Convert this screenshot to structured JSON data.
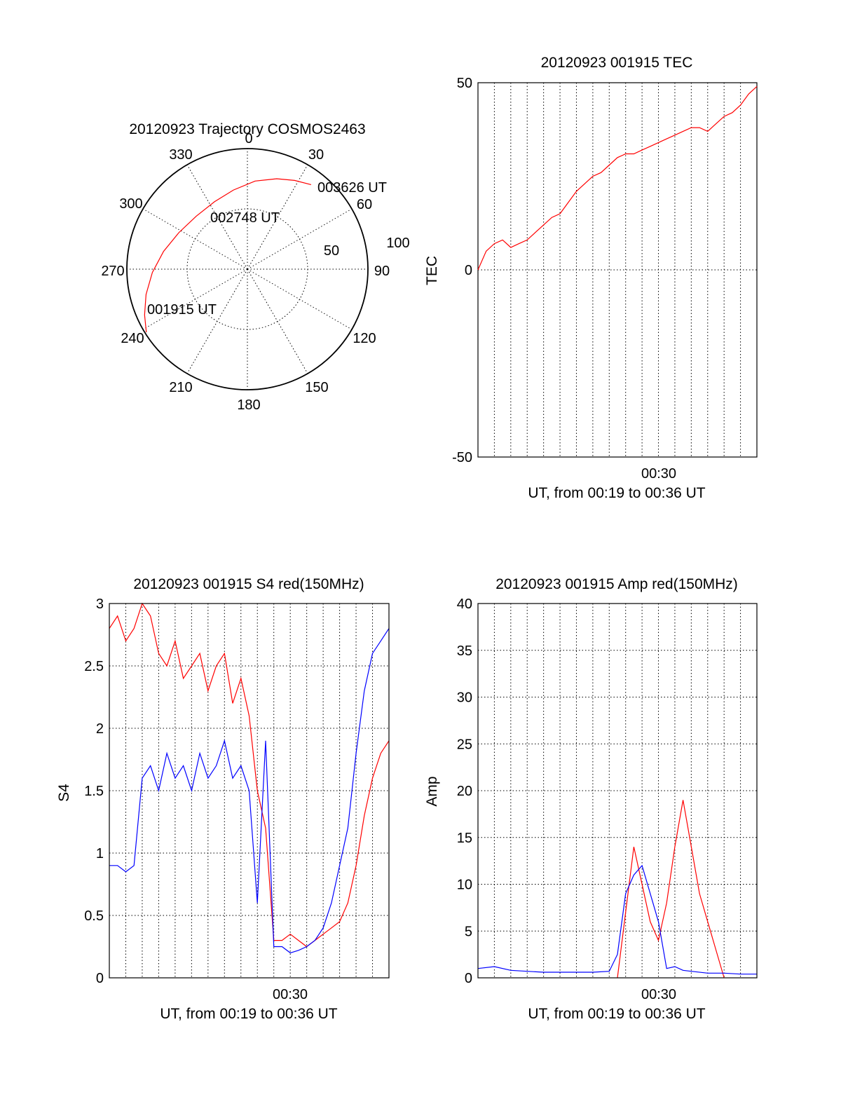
{
  "chart_data": [
    {
      "type": "polar",
      "title": "20120923 Trajectory COSMOS2463",
      "azimuth_labels": [
        "0",
        "30",
        "60",
        "90",
        "120",
        "150",
        "180",
        "210",
        "240",
        "270",
        "300",
        "330"
      ],
      "radius_labels": [
        "50",
        "100"
      ],
      "annotations": [
        "003626 UT",
        "002748 UT",
        "001915 UT"
      ],
      "colors": {
        "trajectory": "#ff0000"
      },
      "trajectory": [
        {
          "az": 238,
          "zen": 89
        },
        {
          "az": 246,
          "zen": 84
        },
        {
          "az": 256,
          "zen": 78
        },
        {
          "az": 268,
          "zen": 71
        },
        {
          "az": 282,
          "zen": 64
        },
        {
          "az": 298,
          "zen": 58
        },
        {
          "az": 316,
          "zen": 55
        },
        {
          "az": 334,
          "zen": 56
        },
        {
          "az": 350,
          "zen": 60
        },
        {
          "az": 5,
          "zen": 66
        },
        {
          "az": 18,
          "zen": 71
        },
        {
          "az": 28,
          "zen": 75
        },
        {
          "az": 37,
          "zen": 79
        }
      ]
    },
    {
      "type": "line",
      "title": "20120923 001915 TEC",
      "ylabel": "TEC",
      "xlabel": "UT, from 00:19 to 00:36 UT",
      "xtick_labels": [
        "00:30"
      ],
      "ytick_labels": [
        "50",
        "0",
        "-50"
      ],
      "ylim": [
        -50,
        50
      ],
      "colors": {
        "series": "#ff0000"
      },
      "series": [
        {
          "x_minutes": [
            0,
            0.5,
            1,
            1.5,
            2,
            2.5,
            3,
            3.5,
            4,
            4.5,
            5,
            5.5,
            6,
            6.5,
            7,
            7.5,
            8,
            8.5,
            9,
            9.5,
            10,
            10.5,
            11,
            11.5,
            12,
            12.5,
            13,
            13.5,
            14,
            14.5,
            15,
            15.5,
            16,
            16.5,
            17
          ],
          "values": [
            0,
            5,
            7,
            8,
            6,
            7,
            8,
            10,
            12,
            14,
            15,
            18,
            21,
            23,
            25,
            26,
            28,
            30,
            31,
            31,
            32,
            33,
            34,
            35,
            36,
            37,
            38,
            38,
            37,
            39,
            41,
            42,
            44,
            47,
            49
          ]
        }
      ]
    },
    {
      "type": "line",
      "title": "20120923 001915 S4 red(150MHz)",
      "ylabel": "S4",
      "xlabel": "UT, from 00:19 to 00:36 UT",
      "xtick_labels": [
        "00:30"
      ],
      "ytick_labels": [
        "0",
        "0.5",
        "1",
        "1.5",
        "2",
        "2.5",
        "3"
      ],
      "ylim": [
        0,
        3
      ],
      "colors": {
        "red": "#ff0000",
        "blue": "#0000ff"
      },
      "series": [
        {
          "color": "red",
          "x_minutes": [
            0,
            0.5,
            1,
            1.5,
            2,
            2.5,
            3,
            3.5,
            4,
            4.5,
            5,
            5.5,
            6,
            6.5,
            7,
            7.5,
            8,
            8.5,
            9,
            9.5,
            10,
            10.5,
            11,
            11.5,
            12,
            12.5,
            13,
            13.5,
            14,
            14.5,
            15,
            15.5,
            16,
            16.5,
            17
          ],
          "values": [
            2.8,
            2.9,
            2.7,
            2.8,
            3.0,
            2.9,
            2.6,
            2.5,
            2.7,
            2.4,
            2.5,
            2.6,
            2.3,
            2.5,
            2.6,
            2.2,
            2.4,
            2.1,
            1.5,
            1.2,
            0.3,
            0.3,
            0.35,
            0.3,
            0.25,
            0.3,
            0.35,
            0.4,
            0.45,
            0.6,
            0.9,
            1.3,
            1.6,
            1.8,
            1.9
          ]
        },
        {
          "color": "blue",
          "x_minutes": [
            0,
            0.5,
            1,
            1.5,
            2,
            2.5,
            3,
            3.5,
            4,
            4.5,
            5,
            5.5,
            6,
            6.5,
            7,
            7.5,
            8,
            8.5,
            9,
            9.5,
            10,
            10.5,
            11,
            11.5,
            12,
            12.5,
            13,
            13.5,
            14,
            14.5,
            15,
            15.5,
            16,
            16.5,
            17
          ],
          "values": [
            0.9,
            0.9,
            0.85,
            0.9,
            1.6,
            1.7,
            1.5,
            1.8,
            1.6,
            1.7,
            1.5,
            1.8,
            1.6,
            1.7,
            1.9,
            1.6,
            1.7,
            1.5,
            0.6,
            1.9,
            0.25,
            0.25,
            0.2,
            0.22,
            0.25,
            0.3,
            0.4,
            0.6,
            0.9,
            1.2,
            1.8,
            2.3,
            2.6,
            2.7,
            2.8
          ]
        }
      ]
    },
    {
      "type": "line",
      "title": "20120923 001915 Amp red(150MHz)",
      "ylabel": "Amp",
      "xlabel": "UT, from 00:19 to 00:36 UT",
      "xtick_labels": [
        "00:30"
      ],
      "ytick_labels": [
        "0",
        "5",
        "10",
        "15",
        "20",
        "25",
        "30",
        "35",
        "40"
      ],
      "ylim": [
        0,
        40
      ],
      "colors": {
        "red": "#ff0000",
        "blue": "#0000ff"
      },
      "series": [
        {
          "color": "red",
          "x_minutes": [
            8.5,
            9,
            9.5,
            10,
            10.5,
            11,
            11.5,
            12,
            12.5,
            13,
            13.5,
            14,
            14.5,
            15
          ],
          "values": [
            0,
            7,
            14,
            10,
            6,
            4,
            8,
            14,
            19,
            14,
            9,
            6,
            3,
            0
          ]
        },
        {
          "color": "blue",
          "x_minutes": [
            0,
            1,
            2,
            3,
            4,
            5,
            6,
            7,
            8,
            8.5,
            9,
            9.5,
            10,
            10.5,
            11,
            11.5,
            12,
            12.5,
            13,
            14,
            15,
            16,
            17
          ],
          "values": [
            1,
            1.2,
            0.8,
            0.7,
            0.6,
            0.6,
            0.6,
            0.6,
            0.7,
            2.5,
            9,
            11,
            12,
            9,
            6,
            1,
            1.2,
            0.8,
            0.7,
            0.5,
            0.5,
            0.4,
            0.4
          ]
        }
      ]
    }
  ]
}
